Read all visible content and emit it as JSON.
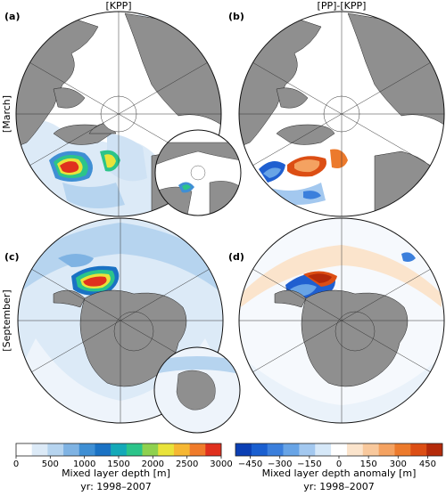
{
  "columns": {
    "left": "[KPP]",
    "right": "[PP]-[KPP]"
  },
  "rows": {
    "top": "[March]",
    "bottom": "[September]"
  },
  "panels": {
    "a": "(a)",
    "b": "(b)",
    "c": "(c)",
    "d": "(d)"
  },
  "colorbars": {
    "mld": {
      "label": "Mixed layer depth [m]",
      "period": "yr: 1998–2007",
      "ticks": [
        "0",
        "500",
        "1000",
        "1500",
        "2000",
        "2500",
        "3000"
      ],
      "tick_values": [
        0,
        500,
        1000,
        1500,
        2000,
        2500,
        3000
      ],
      "range": [
        0,
        3000
      ],
      "colors": [
        "#ffffff",
        "#dceaf7",
        "#b6d4ef",
        "#7fb3e3",
        "#3f8fd4",
        "#1a72c4",
        "#14a9b8",
        "#2cc48a",
        "#8fd14f",
        "#e9e33a",
        "#f6b733",
        "#ef7b2b",
        "#e0301e"
      ]
    },
    "anomaly": {
      "label": "Mixed layer depth anomaly [m]",
      "period": "yr: 1998–2007",
      "ticks": [
        "−450",
        "−300",
        "−150",
        "0",
        "150",
        "300",
        "450"
      ],
      "tick_values": [
        -450,
        -300,
        -150,
        0,
        150,
        300,
        450
      ],
      "range": [
        -525,
        525
      ],
      "colors": [
        "#0b3fb4",
        "#1a5fd0",
        "#3b7fdc",
        "#68a4e6",
        "#a3c8ef",
        "#d6e8f8",
        "#ffffff",
        "#fbe4cc",
        "#f8c89c",
        "#f4a261",
        "#ec7a2c",
        "#dc4e14",
        "#b42a0a"
      ]
    }
  },
  "style": {
    "land": "#8f8f8f",
    "ocean_base": "#eef4fb",
    "deep_mld": "#e0301e",
    "positive_anomaly": "#e86a1e",
    "negative_anomaly": "#1f5fd0"
  }
}
